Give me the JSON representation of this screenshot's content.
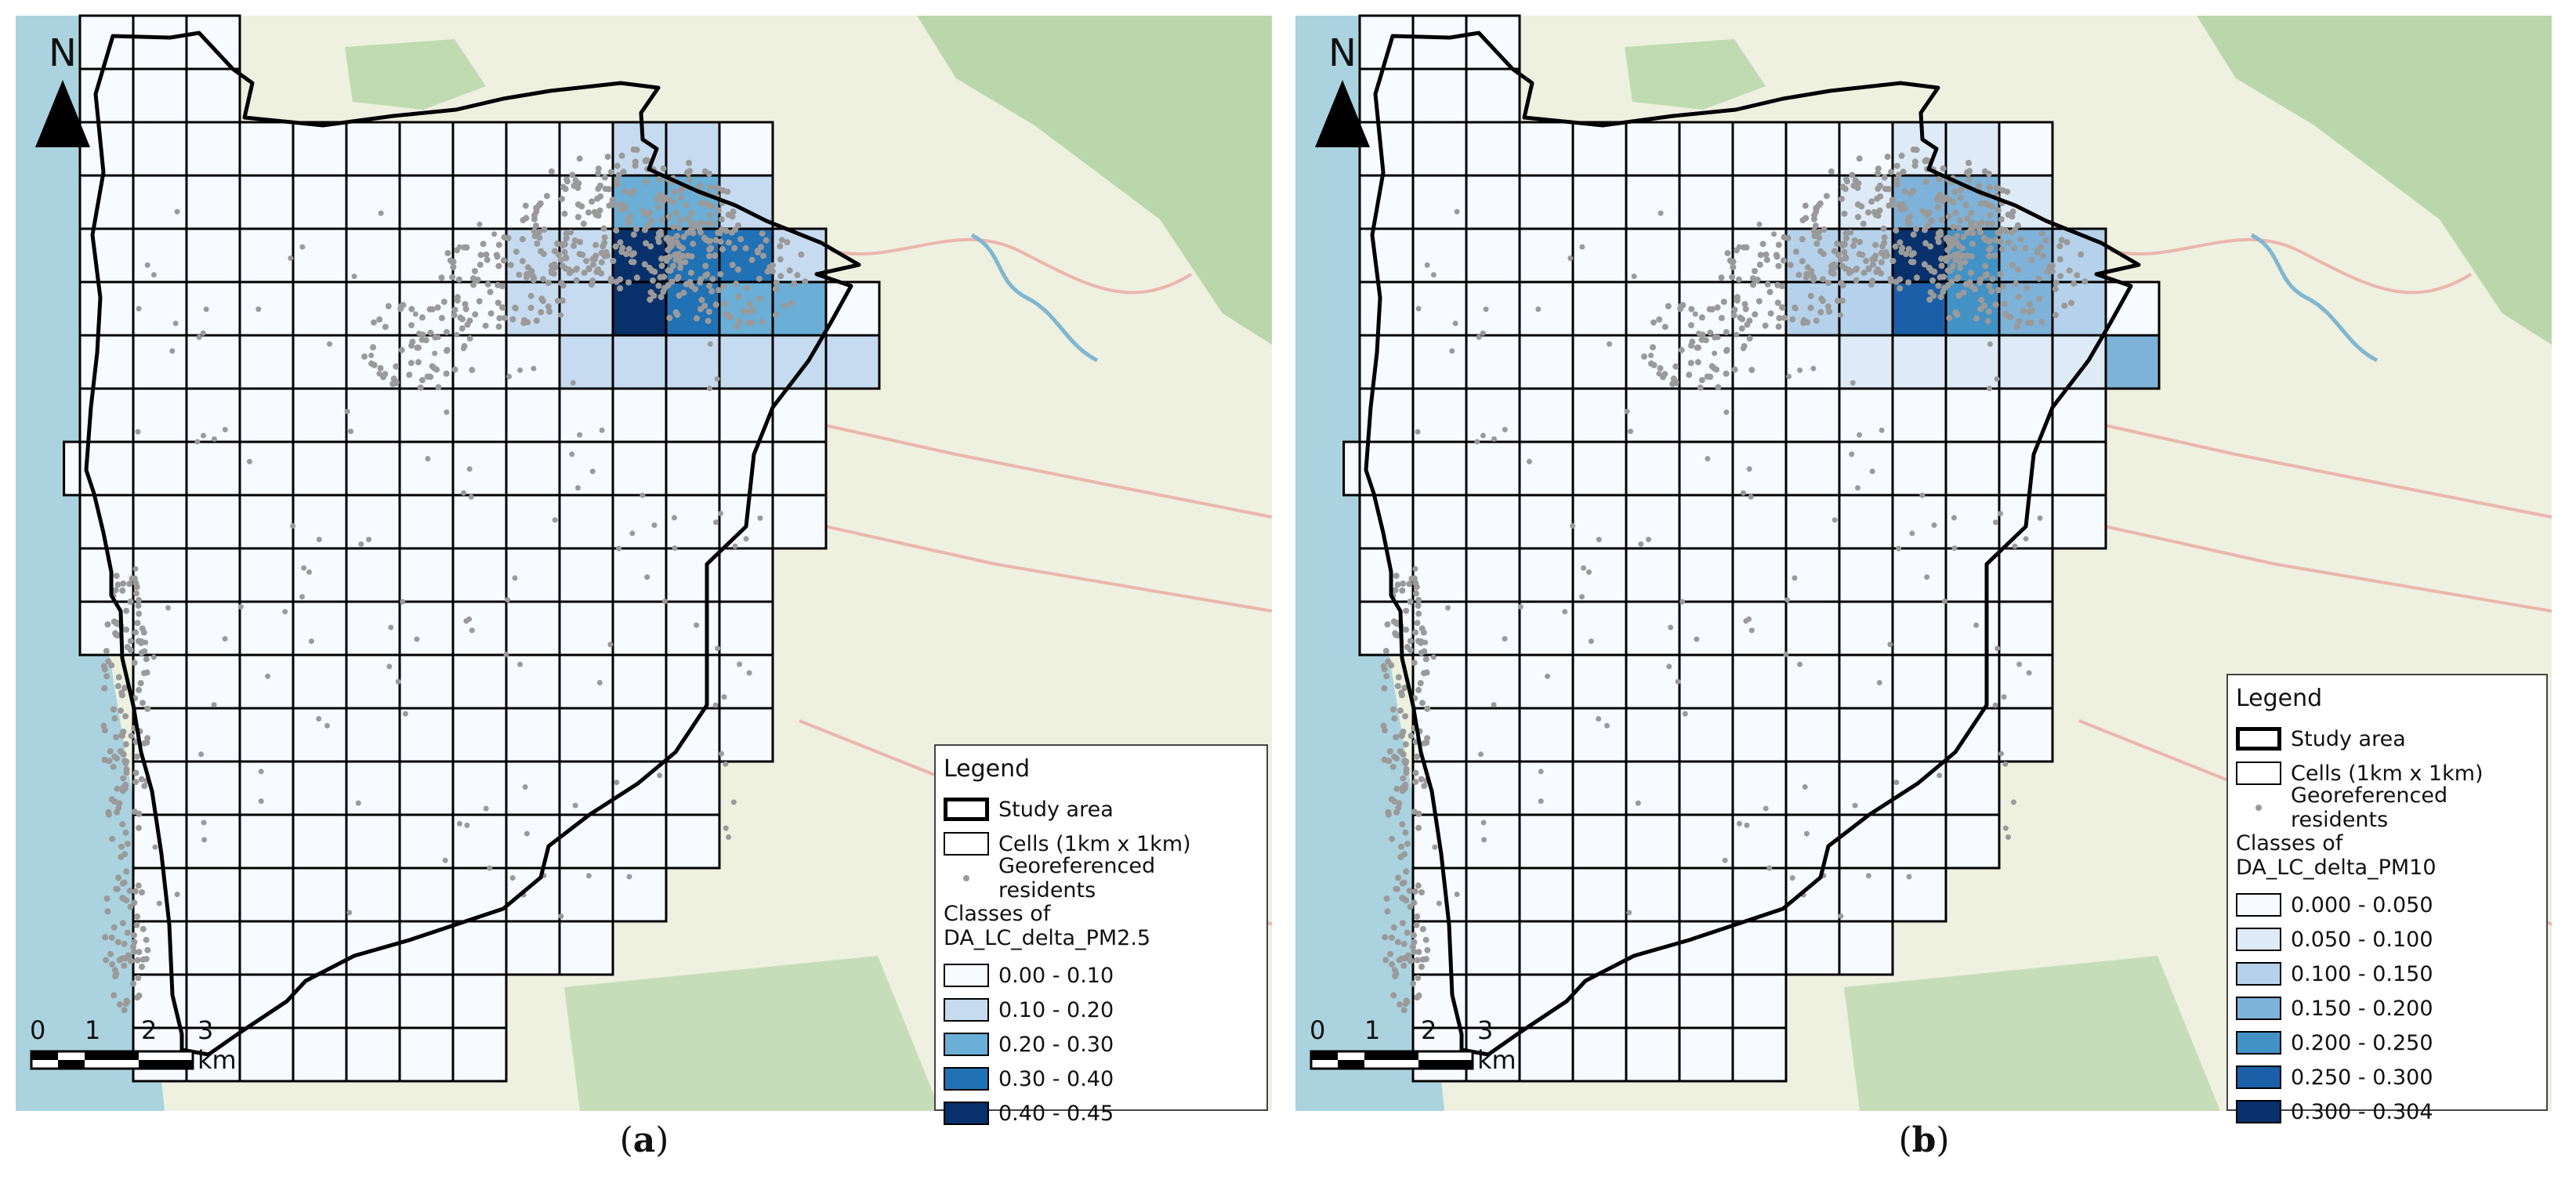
{
  "panels": [
    {
      "id": "a",
      "caption_letter": "a",
      "north_label": "N",
      "scale_ticks": [
        "0",
        "1",
        "2",
        "3 km"
      ],
      "legend": {
        "title": "Legend",
        "study_area": "Study area",
        "cells": "Cells (1km x 1km)",
        "residents": "Georeferenced residents",
        "classes_title": "Classes of DA_LC_delta_PM2.5",
        "classes": [
          {
            "label": "0.00 - 0.10",
            "color": "#f7fbff"
          },
          {
            "label": "0.10 - 0.20",
            "color": "#c6dbef"
          },
          {
            "label": "0.20 - 0.30",
            "color": "#6baed6"
          },
          {
            "label": "0.30 - 0.40",
            "color": "#2171b5"
          },
          {
            "label": "0.40 - 0.45",
            "color": "#08306b"
          }
        ]
      },
      "hot_cells": [
        {
          "c": 10,
          "r": 2,
          "cls": 1
        },
        {
          "c": 11,
          "r": 2,
          "cls": 1
        },
        {
          "c": 10,
          "r": 3,
          "cls": 2
        },
        {
          "c": 11,
          "r": 3,
          "cls": 2
        },
        {
          "c": 12,
          "r": 3,
          "cls": 1
        },
        {
          "c": 8,
          "r": 4,
          "cls": 1
        },
        {
          "c": 9,
          "r": 4,
          "cls": 1
        },
        {
          "c": 10,
          "r": 4,
          "cls": 4
        },
        {
          "c": 11,
          "r": 4,
          "cls": 3
        },
        {
          "c": 12,
          "r": 4,
          "cls": 3
        },
        {
          "c": 13,
          "r": 4,
          "cls": 1
        },
        {
          "c": 8,
          "r": 5,
          "cls": 1
        },
        {
          "c": 9,
          "r": 5,
          "cls": 1
        },
        {
          "c": 10,
          "r": 5,
          "cls": 4
        },
        {
          "c": 11,
          "r": 5,
          "cls": 3
        },
        {
          "c": 12,
          "r": 5,
          "cls": 2
        },
        {
          "c": 13,
          "r": 5,
          "cls": 2
        },
        {
          "c": 9,
          "r": 6,
          "cls": 1
        },
        {
          "c": 10,
          "r": 6,
          "cls": 1
        },
        {
          "c": 11,
          "r": 6,
          "cls": 1
        },
        {
          "c": 12,
          "r": 6,
          "cls": 1
        },
        {
          "c": 13,
          "r": 6,
          "cls": 1
        },
        {
          "c": 14,
          "r": 6,
          "cls": 1
        }
      ]
    },
    {
      "id": "b",
      "caption_letter": "b",
      "north_label": "N",
      "scale_ticks": [
        "0",
        "1",
        "2",
        "3 km"
      ],
      "legend": {
        "title": "Legend",
        "study_area": "Study area",
        "cells": "Cells (1km x 1km)",
        "residents": "Georeferenced residents",
        "classes_title": "Classes of DA_LC_delta_PM10",
        "classes": [
          {
            "label": "0.000 - 0.050",
            "color": "#f7fbff"
          },
          {
            "label": "0.050 - 0.100",
            "color": "#deebf7"
          },
          {
            "label": "0.100 - 0.150",
            "color": "#b6d2ea"
          },
          {
            "label": "0.150 - 0.200",
            "color": "#7fb2d8"
          },
          {
            "label": "0.200 - 0.250",
            "color": "#4292c6"
          },
          {
            "label": "0.250 - 0.300",
            "color": "#1b5fa8"
          },
          {
            "label": "0.300 - 0.304",
            "color": "#08306b"
          }
        ]
      },
      "hot_cells": [
        {
          "c": 10,
          "r": 2,
          "cls": 1
        },
        {
          "c": 11,
          "r": 2,
          "cls": 1
        },
        {
          "c": 9,
          "r": 3,
          "cls": 1
        },
        {
          "c": 10,
          "r": 3,
          "cls": 3
        },
        {
          "c": 11,
          "r": 3,
          "cls": 3
        },
        {
          "c": 12,
          "r": 3,
          "cls": 1
        },
        {
          "c": 8,
          "r": 4,
          "cls": 2
        },
        {
          "c": 9,
          "r": 4,
          "cls": 2
        },
        {
          "c": 10,
          "r": 4,
          "cls": 6
        },
        {
          "c": 11,
          "r": 4,
          "cls": 4
        },
        {
          "c": 12,
          "r": 4,
          "cls": 3
        },
        {
          "c": 13,
          "r": 4,
          "cls": 2
        },
        {
          "c": 8,
          "r": 5,
          "cls": 2
        },
        {
          "c": 9,
          "r": 5,
          "cls": 2
        },
        {
          "c": 10,
          "r": 5,
          "cls": 5
        },
        {
          "c": 11,
          "r": 5,
          "cls": 4
        },
        {
          "c": 12,
          "r": 5,
          "cls": 3
        },
        {
          "c": 13,
          "r": 5,
          "cls": 2
        },
        {
          "c": 9,
          "r": 6,
          "cls": 1
        },
        {
          "c": 10,
          "r": 6,
          "cls": 1
        },
        {
          "c": 11,
          "r": 6,
          "cls": 1
        },
        {
          "c": 12,
          "r": 6,
          "cls": 1
        },
        {
          "c": 13,
          "r": 6,
          "cls": 1
        },
        {
          "c": 14,
          "r": 6,
          "cls": 3
        }
      ]
    }
  ],
  "colors": {
    "sea": "#aad3df",
    "land": "#eef0e0",
    "forest": "#add19e",
    "cell_fill": "#f7fbff",
    "residents": "#9a9a9a",
    "boundary": "#000000"
  }
}
